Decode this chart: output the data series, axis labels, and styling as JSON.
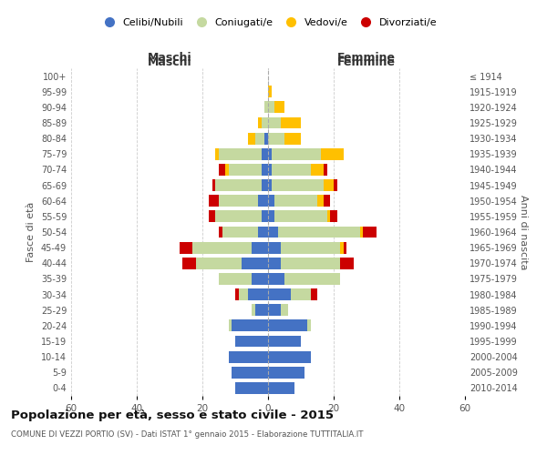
{
  "age_groups": [
    "0-4",
    "5-9",
    "10-14",
    "15-19",
    "20-24",
    "25-29",
    "30-34",
    "35-39",
    "40-44",
    "45-49",
    "50-54",
    "55-59",
    "60-64",
    "65-69",
    "70-74",
    "75-79",
    "80-84",
    "85-89",
    "90-94",
    "95-99",
    "100+"
  ],
  "birth_years": [
    "2010-2014",
    "2005-2009",
    "2000-2004",
    "1995-1999",
    "1990-1994",
    "1985-1989",
    "1980-1984",
    "1975-1979",
    "1970-1974",
    "1965-1969",
    "1960-1964",
    "1955-1959",
    "1950-1954",
    "1945-1949",
    "1940-1944",
    "1935-1939",
    "1930-1934",
    "1925-1929",
    "1920-1924",
    "1915-1919",
    "≤ 1914"
  ],
  "colors": {
    "celibe": "#4472c4",
    "coniugato": "#c5d9a0",
    "vedovo": "#ffc000",
    "divorziato": "#cc0000"
  },
  "maschi": {
    "celibe": [
      10,
      11,
      12,
      10,
      11,
      4,
      6,
      5,
      8,
      5,
      3,
      2,
      3,
      2,
      2,
      2,
      1,
      0,
      0,
      0,
      0
    ],
    "coniugato": [
      0,
      0,
      0,
      0,
      1,
      1,
      3,
      10,
      14,
      18,
      11,
      14,
      12,
      14,
      10,
      13,
      3,
      2,
      1,
      0,
      0
    ],
    "vedovo": [
      0,
      0,
      0,
      0,
      0,
      0,
      0,
      0,
      0,
      0,
      0,
      0,
      0,
      0,
      1,
      1,
      2,
      1,
      0,
      0,
      0
    ],
    "divorziato": [
      0,
      0,
      0,
      0,
      0,
      0,
      1,
      0,
      4,
      4,
      1,
      2,
      3,
      1,
      2,
      0,
      0,
      0,
      0,
      0,
      0
    ]
  },
  "femmine": {
    "nubile": [
      8,
      11,
      13,
      10,
      12,
      4,
      7,
      5,
      4,
      4,
      3,
      2,
      2,
      1,
      1,
      1,
      0,
      0,
      0,
      0,
      0
    ],
    "coniugata": [
      0,
      0,
      0,
      0,
      1,
      2,
      6,
      17,
      18,
      18,
      25,
      16,
      13,
      16,
      12,
      15,
      5,
      4,
      2,
      0,
      0
    ],
    "vedova": [
      0,
      0,
      0,
      0,
      0,
      0,
      0,
      0,
      0,
      1,
      1,
      1,
      2,
      3,
      4,
      7,
      5,
      6,
      3,
      1,
      0
    ],
    "divorziata": [
      0,
      0,
      0,
      0,
      0,
      0,
      2,
      0,
      4,
      1,
      4,
      2,
      2,
      1,
      1,
      0,
      0,
      0,
      0,
      0,
      0
    ]
  },
  "title": "Popolazione per età, sesso e stato civile - 2015",
  "subtitle": "COMUNE DI VEZZI PORTIO (SV) - Dati ISTAT 1° gennaio 2015 - Elaborazione TUTTITALIA.IT",
  "ylabel_left": "Fasce di età",
  "ylabel_right": "Anni di nascita",
  "xlabel_maschi": "Maschi",
  "xlabel_femmine": "Femmine",
  "legend_labels": [
    "Celibi/Nubili",
    "Coniugati/e",
    "Vedovi/e",
    "Divorziati/e"
  ],
  "xlim": 60,
  "background_color": "#ffffff",
  "grid_color": "#cccccc"
}
